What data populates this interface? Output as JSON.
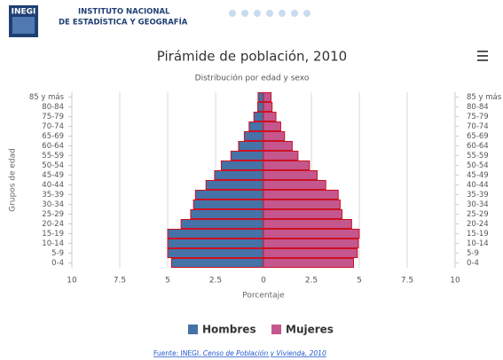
{
  "header": {
    "logo": "INEGI",
    "line1": "INSTITUTO NACIONAL",
    "line2": "DE ESTADÍSTICA Y GEOGRAFÍA"
  },
  "chart_data": {
    "type": "pyramid",
    "title": "Pirámide de población, 2010",
    "subtitle": "Distribución por edad y sexo",
    "y_label": "Grupos de edad",
    "x_label": "Porcentaje",
    "categories": [
      "0-4",
      "5-9",
      "10-14",
      "15-19",
      "20-24",
      "25-29",
      "30-34",
      "35-39",
      "40-44",
      "45-49",
      "50-54",
      "55-59",
      "60-64",
      "65-69",
      "70-74",
      "75-79",
      "80-84",
      "85 y más"
    ],
    "series": [
      {
        "name": "Hombres",
        "color": "#4572a7",
        "values": [
          -4.8,
          -5.0,
          -5.0,
          -5.0,
          -4.3,
          -3.8,
          -3.65,
          -3.55,
          -3.0,
          -2.55,
          -2.2,
          -1.7,
          -1.3,
          -1.0,
          -0.75,
          -0.5,
          -0.3,
          -0.28
        ]
      },
      {
        "name": "Mujeres",
        "color": "#c4578d",
        "values": [
          4.7,
          4.9,
          4.95,
          5.0,
          4.6,
          4.1,
          4.0,
          3.9,
          3.25,
          2.8,
          2.4,
          1.8,
          1.5,
          1.1,
          0.9,
          0.65,
          0.45,
          0.4
        ]
      }
    ],
    "bar_stroke": "#cc1122",
    "xlim": [
      -10,
      10
    ],
    "xticks": [
      {
        "value": -10,
        "label": "10"
      },
      {
        "value": -7.5,
        "label": "7.5"
      },
      {
        "value": -5,
        "label": "5"
      },
      {
        "value": -2.5,
        "label": "2.5"
      },
      0,
      2.5,
      5,
      7.5,
      10
    ],
    "grid": true,
    "source_prefix": "Fuente: INEGI.",
    "source_title": "Censo de Población y Vivienda, 2010"
  }
}
